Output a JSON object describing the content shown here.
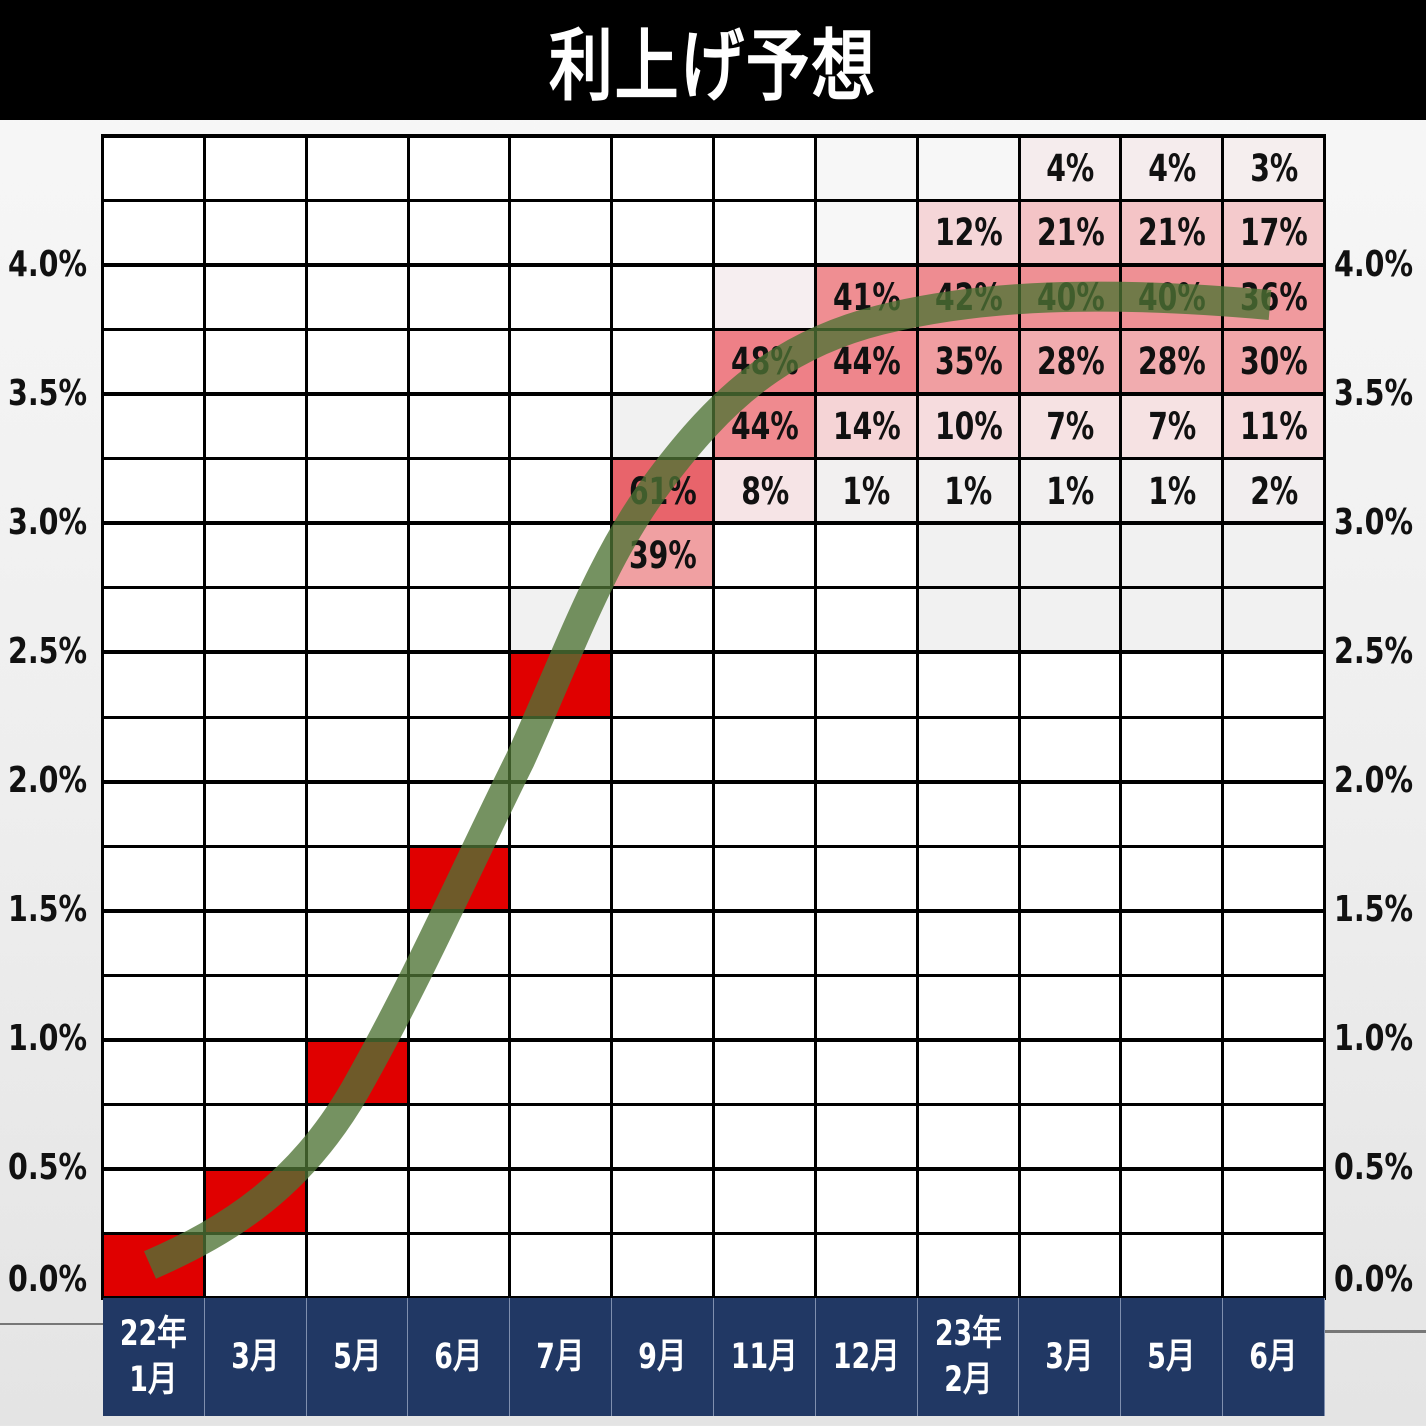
{
  "title": "利上げ予想",
  "chart_data": {
    "type": "heatmap",
    "title": "利上げ予想",
    "xlabel": "",
    "ylabel": "",
    "categories": [
      "22年\n1月",
      "3月",
      "5月",
      "6月",
      "7月",
      "9月",
      "11月",
      "12月",
      "23年\n2月",
      "3月",
      "5月",
      "6月"
    ],
    "y_tick_labels": [
      "4.0%",
      "3.5%",
      "3.0%",
      "2.5%",
      "2.0%",
      "1.5%",
      "1.0%",
      "0.5%",
      "0.0%"
    ],
    "ylim": [
      0,
      4.5
    ],
    "row_step_percent": 0.25,
    "realized_rate_cells": [
      {
        "col": 0,
        "row": 17,
        "rate_range": "0.00-0.25%"
      },
      {
        "col": 1,
        "row": 16,
        "rate_range": "0.25-0.50%"
      },
      {
        "col": 2,
        "row": 14,
        "rate_range": "0.75-1.00%"
      },
      {
        "col": 3,
        "row": 11,
        "rate_range": "1.50-1.75%"
      },
      {
        "col": 4,
        "row": 8,
        "rate_range": "2.25-2.50%"
      }
    ],
    "probabilities": [
      {
        "col": 5,
        "row": 5,
        "value": "61%",
        "color": "#e8646b"
      },
      {
        "col": 5,
        "row": 6,
        "value": "39%",
        "color": "#f0a0a2"
      },
      {
        "col": 6,
        "row": 2,
        "value": "",
        "color": "#f6eef0"
      },
      {
        "col": 6,
        "row": 3,
        "value": "48%",
        "color": "#ee8087"
      },
      {
        "col": 6,
        "row": 4,
        "value": "44%",
        "color": "#ef8a8f"
      },
      {
        "col": 6,
        "row": 5,
        "value": "8%",
        "color": "#f6e4e6"
      },
      {
        "col": 7,
        "row": 1,
        "value": "",
        "color": "#f7f7f7"
      },
      {
        "col": 7,
        "row": 0,
        "value": "",
        "color": "#f7f7f7"
      },
      {
        "col": 7,
        "row": 2,
        "value": "41%",
        "color": "#ef8e92"
      },
      {
        "col": 7,
        "row": 3,
        "value": "44%",
        "color": "#ee868c"
      },
      {
        "col": 7,
        "row": 4,
        "value": "14%",
        "color": "#f5d4d6"
      },
      {
        "col": 7,
        "row": 5,
        "value": "1%",
        "color": "#f2f0f0"
      },
      {
        "col": 8,
        "row": 0,
        "value": "",
        "color": "#f7f7f7"
      },
      {
        "col": 8,
        "row": 1,
        "value": "12%",
        "color": "#f5d6d8"
      },
      {
        "col": 8,
        "row": 2,
        "value": "42%",
        "color": "#ee8c91"
      },
      {
        "col": 8,
        "row": 3,
        "value": "35%",
        "color": "#f09ea1"
      },
      {
        "col": 8,
        "row": 4,
        "value": "10%",
        "color": "#f6dcde"
      },
      {
        "col": 8,
        "row": 5,
        "value": "1%",
        "color": "#f2f0f0"
      },
      {
        "col": 9,
        "row": 0,
        "value": "4%",
        "color": "#f5eced"
      },
      {
        "col": 9,
        "row": 1,
        "value": "21%",
        "color": "#f4c4c6"
      },
      {
        "col": 9,
        "row": 2,
        "value": "40%",
        "color": "#ee9094"
      },
      {
        "col": 9,
        "row": 3,
        "value": "28%",
        "color": "#f1acaf"
      },
      {
        "col": 9,
        "row": 4,
        "value": "7%",
        "color": "#f6e2e3"
      },
      {
        "col": 9,
        "row": 5,
        "value": "1%",
        "color": "#f2f0f0"
      },
      {
        "col": 10,
        "row": 0,
        "value": "4%",
        "color": "#f5eced"
      },
      {
        "col": 10,
        "row": 1,
        "value": "21%",
        "color": "#f4c4c6"
      },
      {
        "col": 10,
        "row": 2,
        "value": "40%",
        "color": "#ee9094"
      },
      {
        "col": 10,
        "row": 3,
        "value": "28%",
        "color": "#f1acaf"
      },
      {
        "col": 10,
        "row": 4,
        "value": "7%",
        "color": "#f6e2e3"
      },
      {
        "col": 10,
        "row": 5,
        "value": "1%",
        "color": "#f2f0f0"
      },
      {
        "col": 11,
        "row": 0,
        "value": "3%",
        "color": "#f5eeee"
      },
      {
        "col": 11,
        "row": 1,
        "value": "17%",
        "color": "#f4cacc"
      },
      {
        "col": 11,
        "row": 2,
        "value": "36%",
        "color": "#f09a9e"
      },
      {
        "col": 11,
        "row": 3,
        "value": "30%",
        "color": "#f1a6a9"
      },
      {
        "col": 11,
        "row": 4,
        "value": "11%",
        "color": "#f6dadc"
      },
      {
        "col": 11,
        "row": 5,
        "value": "2%",
        "color": "#f2eeef"
      }
    ],
    "shaded_empty_cells": [
      {
        "col": 5,
        "row": 4
      },
      {
        "col": 4,
        "row": 7
      },
      {
        "col": 8,
        "row": 6
      },
      {
        "col": 9,
        "row": 6
      },
      {
        "col": 10,
        "row": 6
      },
      {
        "col": 11,
        "row": 6
      },
      {
        "col": 8,
        "row": 7
      },
      {
        "col": 9,
        "row": 7
      },
      {
        "col": 10,
        "row": 7
      },
      {
        "col": 11,
        "row": 7
      }
    ],
    "trend_curve": "S-shaped expected policy-rate path rising from ~0.1% (22年1月) to ~3.85% plateau (23年3月–6月)",
    "colors": {
      "realized": "#e00000",
      "curve": "#4e7335",
      "header_bg": "#000000",
      "xaxis_bg": "#213864"
    }
  }
}
